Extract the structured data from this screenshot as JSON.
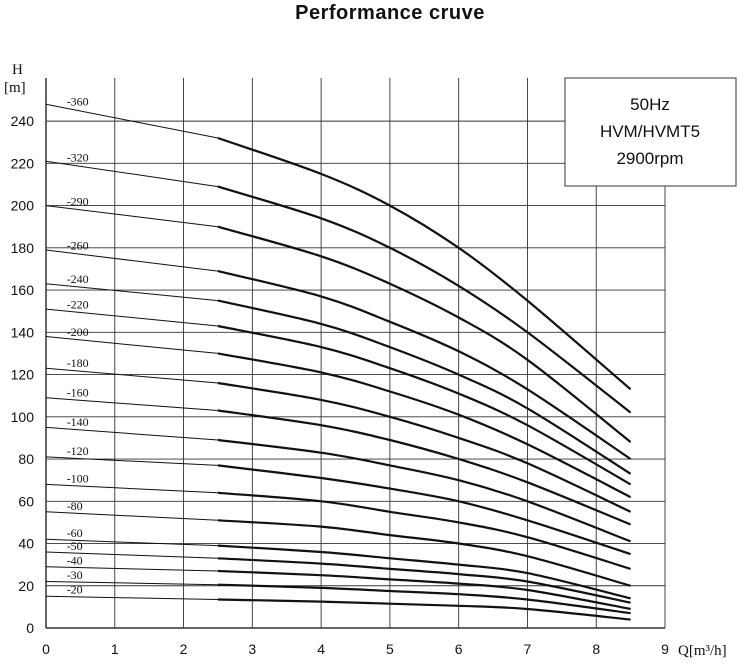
{
  "chart_data": {
    "type": "line",
    "title": "Performance cruve",
    "ylabel_name": "H",
    "ylabel_unit": "[m]",
    "xlabel": "Q[m³/h]",
    "xlim": [
      0,
      9
    ],
    "ylim": [
      0,
      250
    ],
    "xticks": [
      0,
      1,
      2,
      3,
      4,
      5,
      6,
      7,
      8,
      9
    ],
    "yticks": [
      0,
      20,
      40,
      60,
      80,
      100,
      120,
      140,
      160,
      180,
      200,
      220,
      240
    ],
    "grid": true,
    "legend": {
      "lines": [
        "50Hz",
        "HVM/HVMT5",
        "2900rpm"
      ],
      "placement": "top-right"
    },
    "series": [
      {
        "name": "-360",
        "x": [
          0,
          2.5,
          4,
          5,
          6,
          7,
          8.5
        ],
        "y": [
          248,
          232,
          215,
          200,
          180,
          155,
          113
        ]
      },
      {
        "name": "-320",
        "x": [
          0,
          2.5,
          4,
          5,
          6,
          7,
          8.5
        ],
        "y": [
          221,
          209,
          194,
          180,
          162,
          140,
          102
        ]
      },
      {
        "name": "-290",
        "x": [
          0,
          2.5,
          4,
          5,
          6,
          7,
          8.5
        ],
        "y": [
          200,
          190,
          176,
          163,
          147,
          127,
          88
        ]
      },
      {
        "name": "-260",
        "x": [
          0,
          2.5,
          4,
          5,
          6,
          7,
          8.5
        ],
        "y": [
          179,
          169,
          157,
          145,
          131,
          113,
          80
        ]
      },
      {
        "name": "-240",
        "x": [
          0,
          2.5,
          4,
          5,
          6,
          7,
          8.5
        ],
        "y": [
          163,
          155,
          144,
          133,
          120,
          104,
          73
        ]
      },
      {
        "name": "-220",
        "x": [
          0,
          2.5,
          4,
          5,
          6,
          7,
          8.5
        ],
        "y": [
          151,
          143,
          133,
          123,
          111,
          96,
          68
        ]
      },
      {
        "name": "-200",
        "x": [
          0,
          2.5,
          4,
          5,
          6,
          7,
          8.5
        ],
        "y": [
          138,
          130,
          121,
          112,
          101,
          87,
          62
        ]
      },
      {
        "name": "-180",
        "x": [
          0,
          2.5,
          4,
          5,
          6,
          7,
          8.5
        ],
        "y": [
          123,
          116,
          108,
          100,
          90,
          78,
          55
        ]
      },
      {
        "name": "-160",
        "x": [
          0,
          2.5,
          4,
          5,
          6,
          7,
          8.5
        ],
        "y": [
          109,
          103,
          96,
          89,
          80,
          69,
          49
        ]
      },
      {
        "name": "-140",
        "x": [
          0,
          2.5,
          4,
          5,
          6,
          7,
          8.5
        ],
        "y": [
          95,
          89,
          83,
          77,
          70,
          60,
          41
        ]
      },
      {
        "name": "-120",
        "x": [
          0,
          2.5,
          4,
          5,
          6,
          7,
          8.5
        ],
        "y": [
          81,
          77,
          71,
          66,
          60,
          51,
          35
        ]
      },
      {
        "name": "-100",
        "x": [
          0,
          2.5,
          4,
          5,
          6,
          7,
          8.5
        ],
        "y": [
          68,
          64,
          60,
          55,
          50,
          43,
          28
        ]
      },
      {
        "name": "-80",
        "x": [
          0,
          2.5,
          4,
          5,
          6,
          7,
          8.5
        ],
        "y": [
          55,
          51,
          48,
          44,
          40,
          34,
          20
        ]
      },
      {
        "name": "-60",
        "x": [
          0,
          2.5,
          4,
          5,
          6,
          7,
          8.5
        ],
        "y": [
          42,
          39,
          36,
          33,
          30,
          26,
          14
        ]
      },
      {
        "name": "-50",
        "x": [
          0,
          2.5,
          4,
          5,
          6,
          7,
          8.5
        ],
        "y": [
          36,
          33,
          30.5,
          28,
          25.5,
          22,
          12
        ]
      },
      {
        "name": "-40",
        "x": [
          0,
          2.5,
          4,
          5,
          6,
          7,
          8.5
        ],
        "y": [
          29,
          27,
          25,
          23,
          21,
          18,
          9
        ]
      },
      {
        "name": "-30",
        "x": [
          0,
          2.5,
          4,
          5,
          6,
          7,
          8.5
        ],
        "y": [
          22,
          20.5,
          19,
          17.5,
          16,
          13.5,
          7
        ]
      },
      {
        "name": "-20",
        "x": [
          0,
          2.5,
          4,
          5,
          6,
          7,
          8.5
        ],
        "y": [
          15,
          13.5,
          12.5,
          11.5,
          10.5,
          9,
          4
        ]
      }
    ]
  }
}
